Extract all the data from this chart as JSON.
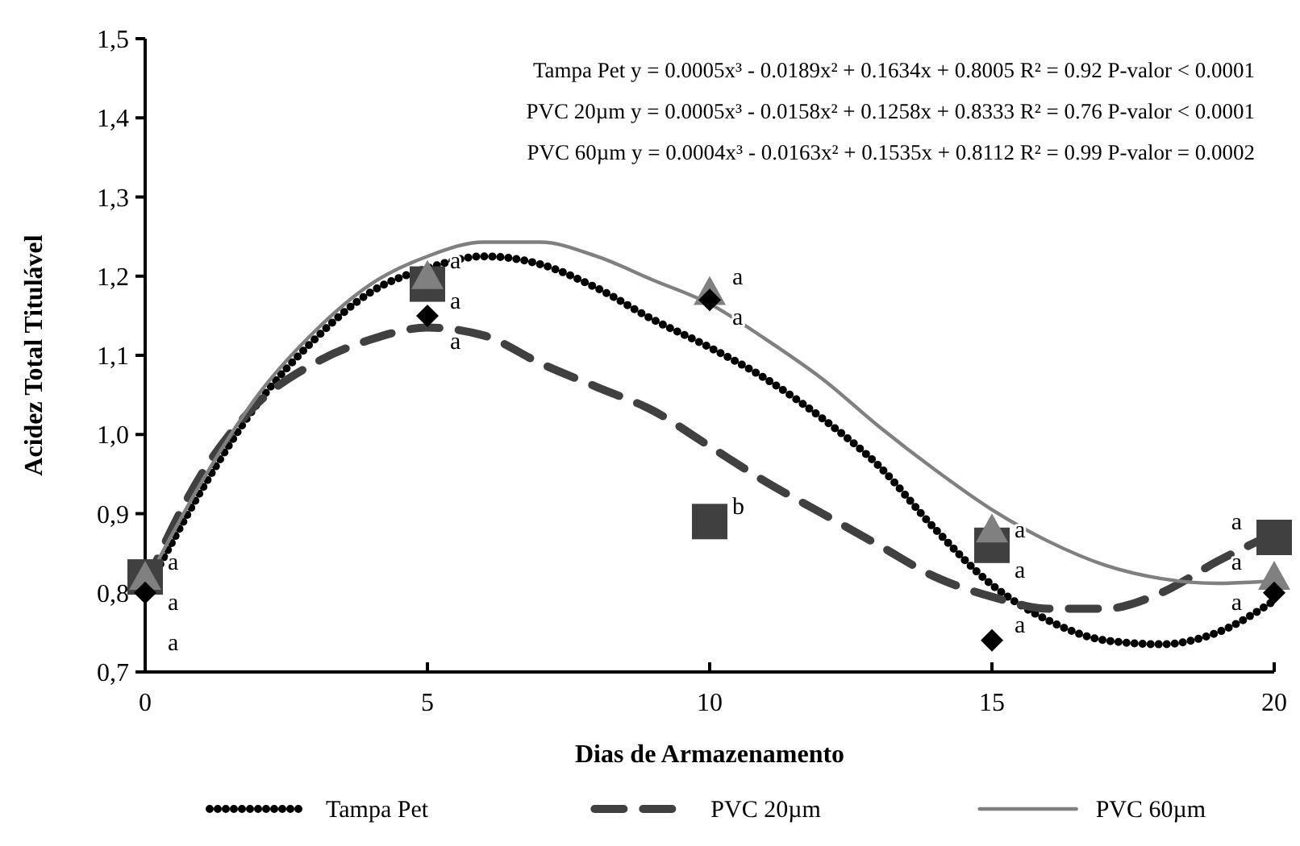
{
  "chart_data": {
    "type": "line",
    "xlabel": "Dias de Armazenamento",
    "ylabel": "Acidez Total Titulável",
    "xlim": [
      0,
      20
    ],
    "xticks": [
      0,
      5,
      10,
      15,
      20
    ],
    "ylim": [
      0.7,
      1.5
    ],
    "yticks": [
      {
        "value": 0.7,
        "label": "0,7"
      },
      {
        "value": 0.8,
        "label": "0,8"
      },
      {
        "value": 0.9,
        "label": "0,9"
      },
      {
        "value": 1.0,
        "label": "1,0"
      },
      {
        "value": 1.1,
        "label": "1,1"
      },
      {
        "value": 1.2,
        "label": "1,2"
      },
      {
        "value": 1.3,
        "label": "1,3"
      },
      {
        "value": 1.4,
        "label": "1,4"
      },
      {
        "value": 1.5,
        "label": "1,5"
      }
    ],
    "grid": false,
    "legend": "bottom",
    "marker": "none",
    "series": [
      {
        "name": "Tampa Pet",
        "color": "#000000",
        "line_style": "dotted",
        "x": [
          0,
          1,
          2,
          3,
          4,
          5,
          6,
          7,
          8,
          9,
          10,
          11,
          12,
          13,
          14,
          15,
          16,
          17,
          18,
          19,
          20
        ],
        "values": [
          0.8,
          0.93,
          1.04,
          1.12,
          1.18,
          1.21,
          1.225,
          1.215,
          1.185,
          1.145,
          1.11,
          1.07,
          1.02,
          0.96,
          0.88,
          0.81,
          0.765,
          0.74,
          0.735,
          0.75,
          0.79
        ]
      },
      {
        "name": "PVC 20µm",
        "color": "#404040",
        "line_style": "dashed",
        "x": [
          0,
          1,
          2,
          3,
          4,
          5,
          6,
          7,
          8,
          9,
          10,
          11,
          12,
          13,
          14,
          15,
          16,
          17,
          18,
          19,
          20
        ],
        "values": [
          0.81,
          0.95,
          1.04,
          1.09,
          1.12,
          1.135,
          1.125,
          1.09,
          1.06,
          1.03,
          0.985,
          0.94,
          0.9,
          0.86,
          0.82,
          0.795,
          0.78,
          0.78,
          0.8,
          0.84,
          0.875
        ]
      },
      {
        "name": "PVC 60µm",
        "color": "#808080",
        "line_style": "solid",
        "x": [
          0,
          1,
          2,
          3,
          4,
          5,
          6,
          7,
          8,
          9,
          10,
          11,
          12,
          13,
          14,
          15,
          16,
          17,
          18,
          19,
          20
        ],
        "values": [
          0.81,
          0.94,
          1.05,
          1.13,
          1.19,
          1.225,
          1.243,
          1.243,
          1.225,
          1.195,
          1.165,
          1.12,
          1.07,
          1.01,
          0.955,
          0.905,
          0.865,
          0.835,
          0.818,
          0.812,
          0.815
        ]
      },
      {
        "type": "scatter",
        "marker": "square",
        "color": "#404040",
        "x": [
          0,
          5,
          10,
          15,
          20
        ],
        "values": [
          0.82,
          1.19,
          0.89,
          0.86,
          0.87
        ]
      },
      {
        "type": "scatter",
        "marker": "triangle",
        "color": "#808080",
        "x": [
          0,
          5,
          10,
          15,
          20
        ],
        "values": [
          0.82,
          1.2,
          1.18,
          0.88,
          0.82
        ]
      },
      {
        "type": "scatter",
        "marker": "diamond",
        "color": "#000000",
        "x": [
          0,
          5,
          10,
          15,
          20
        ],
        "values": [
          0.8,
          1.15,
          1.17,
          0.74,
          0.8
        ]
      }
    ],
    "annotations": [
      "Tampa Pet y = 0.0005x³ - 0.0189x² + 0.1634x + 0.8005  R² = 0.92  P-valor < 0.0001",
      "PVC 20µm y = 0.0005x³ - 0.0158x² + 0.1258x + 0.8333 R² = 0.76  P-valor < 0.0001",
      "PVC 60µm y = 0.0004x³ - 0.0163x² + 0.1535x + 0.8112 R² = 0.99 P-valor = 0.0002",
      {
        "text": "a",
        "x": 0,
        "y": 0.82
      },
      {
        "text": "a",
        "x": 0,
        "y": 0.82
      },
      {
        "text": "a",
        "x": 0,
        "y": 0.8
      },
      {
        "text": "a",
        "x": 5,
        "y": 1.2
      },
      {
        "text": "a",
        "x": 5,
        "y": 1.15
      },
      {
        "text": "a",
        "x": 5,
        "y": 1.19
      },
      {
        "text": "a",
        "x": 10,
        "y": 1.18
      },
      {
        "text": "a",
        "x": 10,
        "y": 1.17
      },
      {
        "text": "b",
        "x": 10,
        "y": 0.89
      },
      {
        "text": "a",
        "x": 15,
        "y": 0.86
      },
      {
        "text": "a",
        "x": 15,
        "y": 0.88
      },
      {
        "text": "a",
        "x": 15,
        "y": 0.74
      },
      {
        "text": "a",
        "x": 20,
        "y": 0.87
      },
      {
        "text": "a",
        "x": 20,
        "y": 0.82
      },
      {
        "text": "a",
        "x": 20,
        "y": 0.8
      }
    ]
  }
}
